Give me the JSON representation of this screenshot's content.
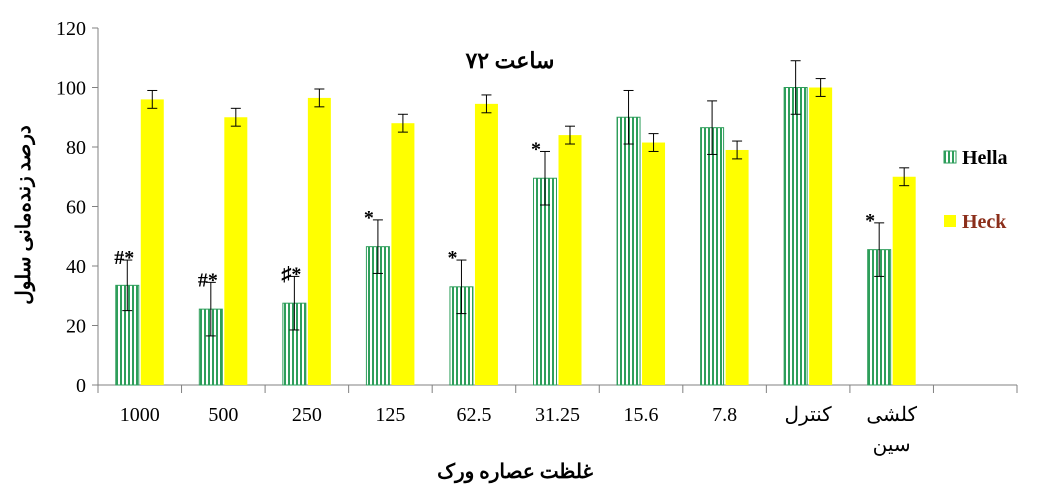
{
  "chart_data": {
    "type": "bar",
    "title": "ساعت ۷۲",
    "xlabel": "غلظت عصاره ورک",
    "ylabel": "درصد زنده‌مانی سلول",
    "ylim": [
      0,
      120
    ],
    "yticks": [
      "0",
      "20",
      "40",
      "60",
      "80",
      "100",
      "120"
    ],
    "categories": [
      "1000",
      "500",
      "250",
      "125",
      "62.5",
      "31.25",
      "15.6",
      "7.8",
      "کنترل",
      "کلشی سین"
    ],
    "series": [
      {
        "name": "Hella",
        "color": "#2e9e5b",
        "values": [
          33.5,
          25.5,
          27.5,
          46.5,
          33.0,
          69.5,
          90.0,
          86.5,
          100.0,
          45.5
        ],
        "errors": [
          8.5,
          9.0,
          9.0,
          9.0,
          9.0,
          9.0,
          9.0,
          9.0,
          9.0,
          9.0
        ]
      },
      {
        "name": "Heck",
        "color": "#ffff00",
        "values": [
          96.0,
          90.0,
          96.5,
          88.0,
          94.5,
          84.0,
          81.5,
          79.0,
          100.0,
          70.0
        ],
        "errors": [
          3.0,
          3.0,
          3.0,
          3.0,
          3.0,
          3.0,
          3.0,
          3.0,
          3.0,
          3.0
        ]
      }
    ],
    "annotations": [
      "#*",
      "#*",
      "♯*",
      "*",
      "*",
      "*",
      "",
      "",
      "",
      "*"
    ],
    "legend_position": "right",
    "grid": false
  }
}
